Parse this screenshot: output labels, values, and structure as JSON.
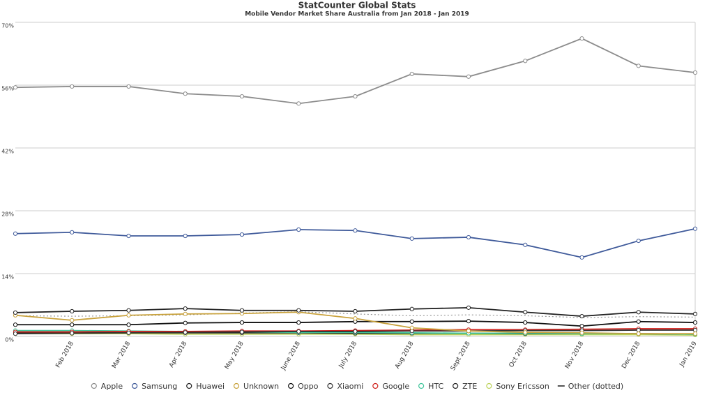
{
  "chart_data": {
    "type": "line",
    "title": "StatCounter Global Stats",
    "subtitle": "Mobile Vendor Market Share Australia from Jan 2018 - Jan 2019",
    "categories": [
      null,
      "Feb 2018",
      "Mar 2018",
      "Apr 2018",
      "May 2018",
      "June 2018",
      "July 2018",
      "Aug 2018",
      "Sept 2018",
      "Oct 2018",
      "Nov 2018",
      "Dec 2018",
      "Jan 2019"
    ],
    "ylim": [
      0,
      70
    ],
    "yticks": [
      {
        "value": 0,
        "label": "0%"
      },
      {
        "value": 14,
        "label": "14%"
      },
      {
        "value": 28,
        "label": "28%"
      },
      {
        "value": 42,
        "label": "42%"
      },
      {
        "value": 56,
        "label": "56%"
      },
      {
        "value": 70,
        "label": "70%"
      }
    ],
    "grid": true,
    "legend": "bottom",
    "series": [
      {
        "name": "Apple",
        "color": "#8c8c8c",
        "values": [
          55.5,
          55.7,
          55.7,
          54.1,
          53.5,
          51.9,
          53.5,
          58.5,
          57.9,
          61.4,
          66.4,
          60.3,
          58.8
        ]
      },
      {
        "name": "Samsung",
        "color": "#3f5a9a",
        "values": [
          22.9,
          23.2,
          22.4,
          22.4,
          22.7,
          23.8,
          23.6,
          21.8,
          22.1,
          20.4,
          17.6,
          21.3,
          24.0
        ]
      },
      {
        "name": "Huawei",
        "color": "#222222",
        "values": [
          5.3,
          5.6,
          5.8,
          6.2,
          5.8,
          5.8,
          5.6,
          6.1,
          6.4,
          5.4,
          4.5,
          5.4,
          5.0
        ]
      },
      {
        "name": "Unknown",
        "color": "#c9a23c",
        "values": [
          4.7,
          3.6,
          4.7,
          5.0,
          5.1,
          5.4,
          4.0,
          1.9,
          1.2,
          0.9,
          0.8,
          0.6,
          0.6
        ]
      },
      {
        "name": "Oppo",
        "color": "#111111",
        "values": [
          2.6,
          2.6,
          2.6,
          3.0,
          3.1,
          3.1,
          3.3,
          3.3,
          3.4,
          3.1,
          2.3,
          3.3,
          3.1
        ]
      },
      {
        "name": "Xiaomi",
        "color": "#333333",
        "values": [
          0.6,
          0.7,
          0.8,
          0.9,
          1.0,
          1.1,
          1.1,
          1.2,
          1.2,
          1.3,
          1.3,
          1.4,
          1.4
        ]
      },
      {
        "name": "Google",
        "color": "#d0211c",
        "values": [
          1.0,
          1.0,
          1.1,
          1.1,
          1.2,
          1.2,
          1.3,
          1.4,
          1.5,
          1.5,
          1.6,
          1.7,
          1.7
        ]
      },
      {
        "name": "HTC",
        "color": "#3ec59a",
        "values": [
          1.3,
          1.3,
          1.2,
          1.1,
          1.0,
          0.9,
          0.9,
          0.8,
          0.7,
          0.7,
          0.6,
          0.6,
          0.5
        ]
      },
      {
        "name": "ZTE",
        "color": "#222222",
        "values": [
          0.8,
          0.8,
          0.8,
          0.8,
          0.8,
          0.8,
          0.7,
          0.7,
          0.7,
          0.6,
          0.6,
          0.6,
          0.5
        ]
      },
      {
        "name": "Sony Ericsson",
        "color": "#bcd35a",
        "values": [
          0.6,
          0.6,
          0.6,
          0.5,
          0.5,
          0.5,
          0.5,
          0.4,
          0.4,
          0.4,
          0.4,
          0.4,
          0.3
        ]
      },
      {
        "name": "Other (dotted)",
        "color": "#999999",
        "dotted": true,
        "values": [
          4.6,
          4.5,
          4.6,
          4.8,
          5.2,
          5.5,
          5.0,
          4.6,
          4.8,
          4.6,
          4.2,
          4.4,
          4.3
        ]
      }
    ]
  }
}
